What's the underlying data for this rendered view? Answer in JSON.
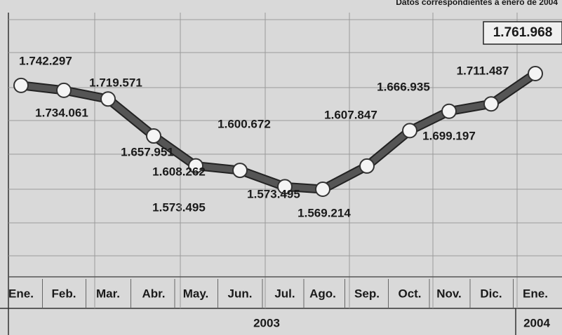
{
  "chart_data": {
    "type": "line",
    "subtitle": "Datos correspondientes a enero de 2004",
    "categories": [
      "Ene.",
      "Feb.",
      "Mar.",
      "Abr.",
      "May.",
      "Jun.",
      "Jul.",
      "Ago.",
      "Sep.",
      "Oct.",
      "Nov.",
      "Dic.",
      "Ene."
    ],
    "series": [
      {
        "color": "#555555",
        "values": [
          1742297,
          1734061,
          1719571,
          1657951,
          1608262,
          1600672,
          1573495,
          1569214,
          1607847,
          1666935,
          1699197,
          1711487,
          1761968
        ],
        "value_labels": [
          "1.742.297",
          "1.734.061",
          "1.719.571",
          "1.657.951",
          "1.608.262",
          "1.600.672",
          "1.573.495",
          "1.569.214",
          "1.607.847",
          "1.666.935",
          "1.699.197",
          "1.711.487",
          "1.761.968"
        ]
      }
    ],
    "annotations": [
      "1.573.495"
    ],
    "years": [
      "2003",
      "2004"
    ],
    "grid": true
  }
}
